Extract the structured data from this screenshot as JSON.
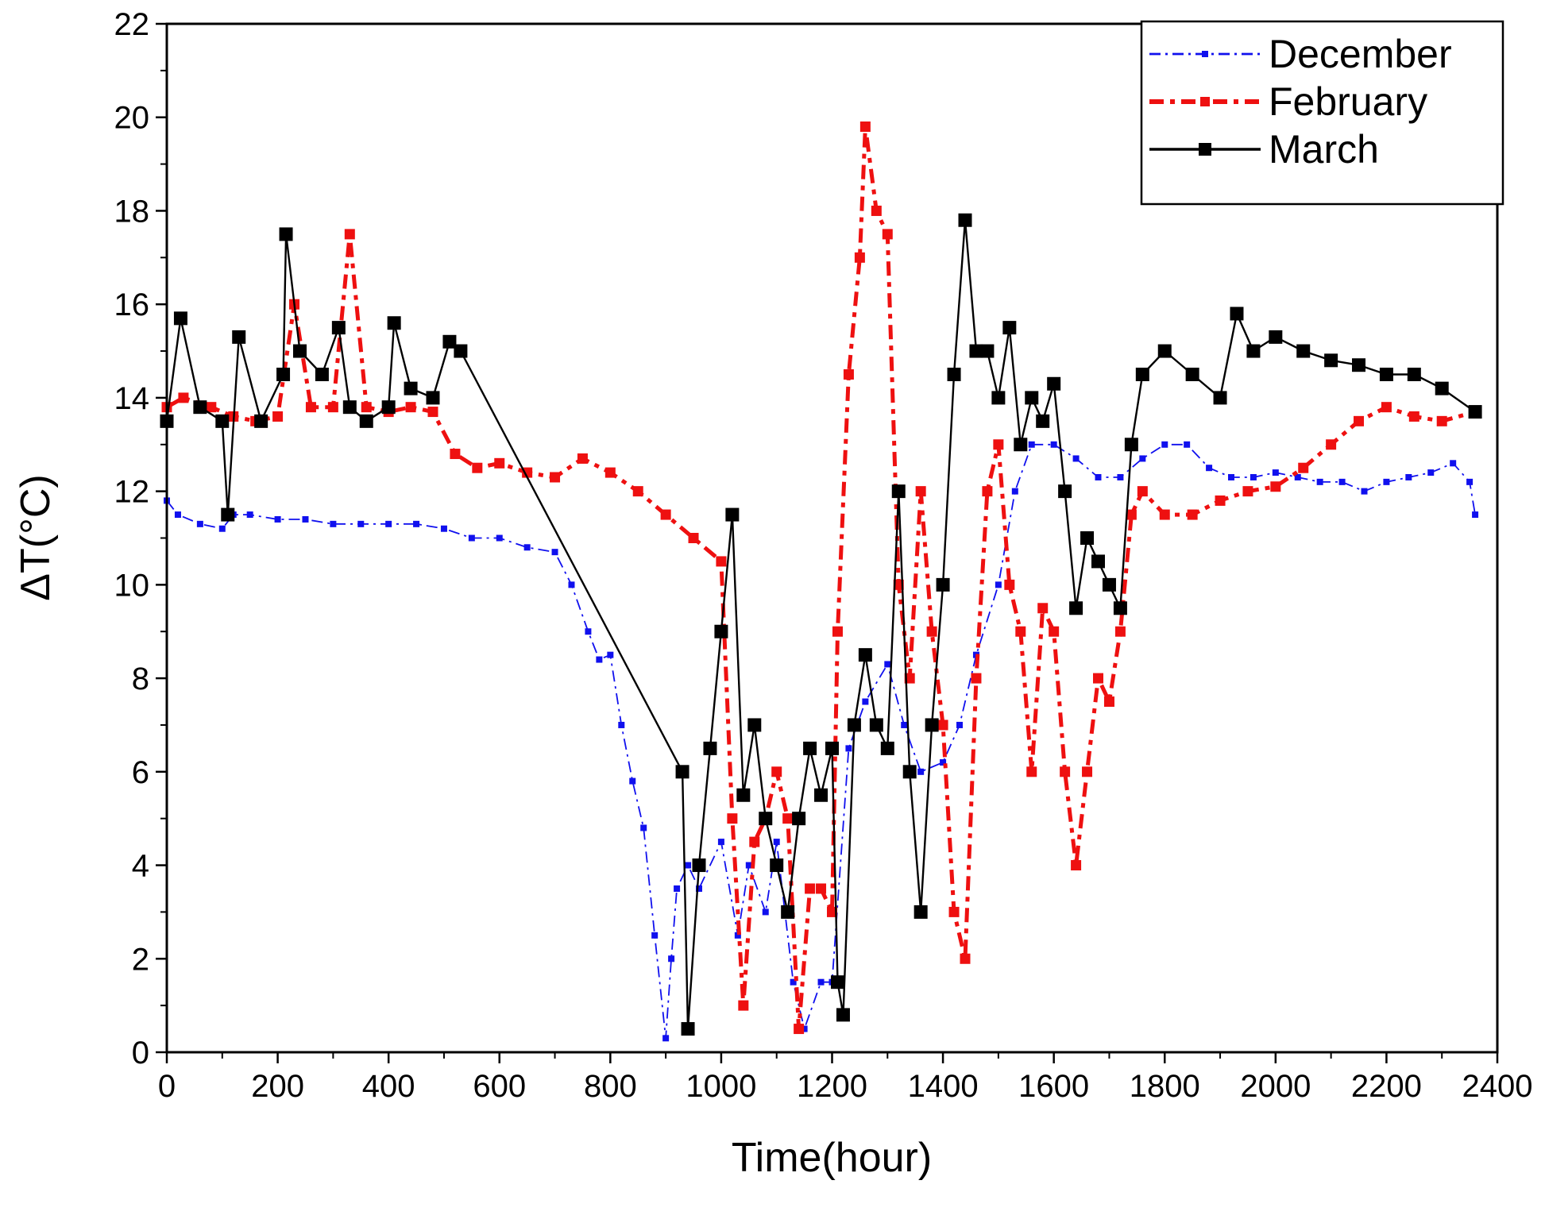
{
  "chart_data": {
    "type": "line",
    "title": "",
    "xlabel": "Time(hour)",
    "ylabel": "ΔT(°C)",
    "xlim": [
      0,
      2400
    ],
    "ylim": [
      0,
      22
    ],
    "xticks": [
      0,
      200,
      400,
      600,
      800,
      1000,
      1200,
      1400,
      1600,
      1800,
      2000,
      2200,
      2400
    ],
    "xtick_labels": [
      "0",
      "200",
      "400",
      "600",
      "800",
      "1000",
      "1200",
      "1400",
      "1600",
      "1800",
      "2000",
      "2200",
      "2400"
    ],
    "yticks": [
      0,
      2,
      4,
      6,
      8,
      10,
      12,
      14,
      16,
      18,
      20,
      22
    ],
    "ytick_labels": [
      "0",
      "2",
      "4",
      "6",
      "8",
      "10",
      "12",
      "14",
      "16",
      "18",
      "20",
      "22"
    ],
    "legend_position": "top-right",
    "series": [
      {
        "name": "December",
        "color": "#1010ee",
        "line_style": "dash-dot",
        "marker": "small-square",
        "x": [
          0,
          20,
          60,
          100,
          120,
          150,
          200,
          250,
          300,
          350,
          400,
          450,
          500,
          550,
          600,
          650,
          700,
          730,
          760,
          780,
          800,
          820,
          840,
          860,
          880,
          900,
          910,
          920,
          940,
          960,
          1000,
          1030,
          1050,
          1080,
          1100,
          1130,
          1150,
          1180,
          1200,
          1230,
          1260,
          1300,
          1330,
          1360,
          1400,
          1430,
          1460,
          1500,
          1530,
          1560,
          1600,
          1640,
          1680,
          1720,
          1760,
          1800,
          1840,
          1880,
          1920,
          1960,
          2000,
          2040,
          2080,
          2120,
          2160,
          2200,
          2240,
          2280,
          2320,
          2350,
          2360
        ],
        "y": [
          11.8,
          11.5,
          11.3,
          11.2,
          11.5,
          11.5,
          11.4,
          11.4,
          11.3,
          11.3,
          11.3,
          11.3,
          11.2,
          11.0,
          11.0,
          10.8,
          10.7,
          10.0,
          9.0,
          8.4,
          8.5,
          7.0,
          5.8,
          4.8,
          2.5,
          0.3,
          2.0,
          3.5,
          4.0,
          3.5,
          4.5,
          2.5,
          4.0,
          3.0,
          4.5,
          1.5,
          0.5,
          1.5,
          1.5,
          6.5,
          7.5,
          8.3,
          7.0,
          6.0,
          6.2,
          7.0,
          8.5,
          10.0,
          12.0,
          13.0,
          13.0,
          12.7,
          12.3,
          12.3,
          12.7,
          13.0,
          13.0,
          12.5,
          12.3,
          12.3,
          12.4,
          12.3,
          12.2,
          12.2,
          12.0,
          12.2,
          12.3,
          12.4,
          12.6,
          12.2,
          11.5
        ]
      },
      {
        "name": "February",
        "color": "#ee1010",
        "line_style": "dash-dot",
        "marker": "medium-square",
        "x": [
          0,
          30,
          80,
          120,
          160,
          200,
          230,
          260,
          300,
          330,
          360,
          400,
          440,
          480,
          520,
          560,
          600,
          650,
          700,
          750,
          800,
          850,
          900,
          950,
          1000,
          1020,
          1040,
          1060,
          1080,
          1100,
          1120,
          1140,
          1160,
          1180,
          1200,
          1210,
          1230,
          1250,
          1260,
          1280,
          1300,
          1320,
          1340,
          1360,
          1380,
          1400,
          1420,
          1440,
          1460,
          1480,
          1500,
          1520,
          1540,
          1560,
          1580,
          1600,
          1620,
          1640,
          1660,
          1680,
          1700,
          1720,
          1740,
          1760,
          1800,
          1850,
          1900,
          1950,
          2000,
          2050,
          2100,
          2150,
          2200,
          2250,
          2300,
          2360
        ],
        "y": [
          13.8,
          14.0,
          13.8,
          13.6,
          13.5,
          13.6,
          16.0,
          13.8,
          13.8,
          17.5,
          13.8,
          13.7,
          13.8,
          13.7,
          12.8,
          12.5,
          12.6,
          12.4,
          12.3,
          12.7,
          12.4,
          12.0,
          11.5,
          11.0,
          10.5,
          5.0,
          1.0,
          4.5,
          5.0,
          6.0,
          5.0,
          0.5,
          3.5,
          3.5,
          3.0,
          9.0,
          14.5,
          17.0,
          19.8,
          18.0,
          17.5,
          10.0,
          8.0,
          12.0,
          9.0,
          7.0,
          3.0,
          2.0,
          8.0,
          12.0,
          13.0,
          10.0,
          9.0,
          6.0,
          9.5,
          9.0,
          6.0,
          4.0,
          6.0,
          8.0,
          7.5,
          9.0,
          11.5,
          12.0,
          11.5,
          11.5,
          11.8,
          12.0,
          12.1,
          12.5,
          13.0,
          13.5,
          13.8,
          13.6,
          13.5,
          13.7
        ]
      },
      {
        "name": "March",
        "color": "#000000",
        "line_style": "solid",
        "marker": "large-square",
        "x": [
          0,
          25,
          60,
          100,
          110,
          130,
          170,
          210,
          215,
          240,
          280,
          310,
          330,
          360,
          400,
          410,
          440,
          480,
          510,
          530,
          930,
          940,
          960,
          980,
          1000,
          1020,
          1040,
          1060,
          1080,
          1100,
          1120,
          1140,
          1160,
          1180,
          1200,
          1210,
          1220,
          1240,
          1260,
          1280,
          1300,
          1320,
          1340,
          1360,
          1380,
          1400,
          1420,
          1440,
          1460,
          1480,
          1500,
          1520,
          1540,
          1560,
          1580,
          1600,
          1620,
          1640,
          1660,
          1680,
          1700,
          1720,
          1740,
          1760,
          1800,
          1850,
          1900,
          1930,
          1960,
          2000,
          2050,
          2100,
          2150,
          2200,
          2250,
          2300,
          2360
        ],
        "y": [
          13.5,
          15.7,
          13.8,
          13.5,
          11.5,
          15.3,
          13.5,
          14.5,
          17.5,
          15.0,
          14.5,
          15.5,
          13.8,
          13.5,
          13.8,
          15.6,
          14.2,
          14.0,
          15.2,
          15.0,
          6.0,
          0.5,
          4.0,
          6.5,
          9.0,
          11.5,
          5.5,
          7.0,
          5.0,
          4.0,
          3.0,
          5.0,
          6.5,
          5.5,
          6.5,
          1.5,
          0.8,
          7.0,
          8.5,
          7.0,
          6.5,
          12.0,
          6.0,
          3.0,
          7.0,
          10.0,
          14.5,
          17.8,
          15.0,
          15.0,
          14.0,
          15.5,
          13.0,
          14.0,
          13.5,
          14.3,
          12.0,
          9.5,
          11.0,
          10.5,
          10.0,
          9.5,
          13.0,
          14.5,
          15.0,
          14.5,
          14.0,
          15.8,
          15.0,
          15.3,
          15.0,
          14.8,
          14.7,
          14.5,
          14.5,
          14.2,
          13.7
        ]
      }
    ]
  }
}
